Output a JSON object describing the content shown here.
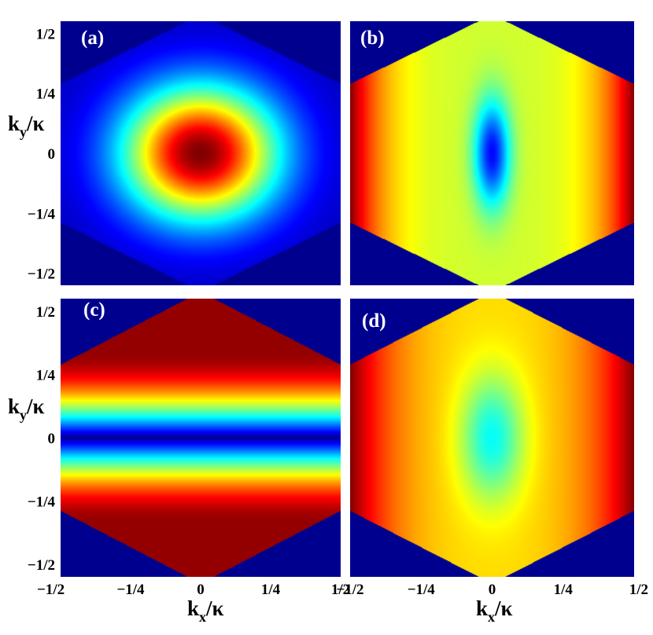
{
  "chart_data": {
    "type": "heatmap",
    "colormap": "jet",
    "region": "hexagonal Brillouin zone; color outside the hexagon = minimum (dark blue)",
    "xlabel": {
      "main": "k",
      "sub": "x",
      "tail": "/κ"
    },
    "ylabel": {
      "main": "k",
      "sub": "y",
      "tail": "/κ"
    },
    "xlim": [
      -0.5,
      0.5
    ],
    "ylim": [
      -0.55,
      0.55
    ],
    "xticks": [
      {
        "value": -0.5,
        "label": "−1/2"
      },
      {
        "value": -0.25,
        "label": "−1/4"
      },
      {
        "value": 0,
        "label": "0"
      },
      {
        "value": 0.25,
        "label": "1/4"
      },
      {
        "value": 0.5,
        "label": "1/2"
      }
    ],
    "yticks": [
      {
        "value": 0.5,
        "label": "1/2"
      },
      {
        "value": 0.25,
        "label": "1/4"
      },
      {
        "value": 0,
        "label": "0"
      },
      {
        "value": -0.25,
        "label": "−1/4"
      },
      {
        "value": -0.5,
        "label": "−1/2"
      }
    ],
    "hexagon_vertices": [
      [
        0,
        0.577
      ],
      [
        0.5,
        0.289
      ],
      [
        0.5,
        -0.289
      ],
      [
        0,
        -0.577
      ],
      [
        -0.5,
        -0.289
      ],
      [
        -0.5,
        0.289
      ]
    ],
    "panels": [
      {
        "label": "(a)",
        "pattern": "radial",
        "max_at": [
          [
            0,
            0
          ]
        ],
        "min_at": "hexagon corners"
      },
      {
        "label": "(b)",
        "pattern": "elongated minimum along ky",
        "max_at": [
          [
            -0.5,
            0
          ],
          [
            0.5,
            0
          ]
        ],
        "min_at": [
          [
            0,
            0
          ]
        ]
      },
      {
        "label": "(c)",
        "pattern": "horizontal bands",
        "max_at": "ky = ±0.3",
        "min_at": "ky = 0"
      },
      {
        "label": "(d)",
        "pattern": "shallow central minimum",
        "max_at": [
          [
            -0.5,
            0
          ],
          [
            0.5,
            0
          ]
        ],
        "min_at": [
          [
            0,
            0
          ]
        ]
      }
    ]
  }
}
